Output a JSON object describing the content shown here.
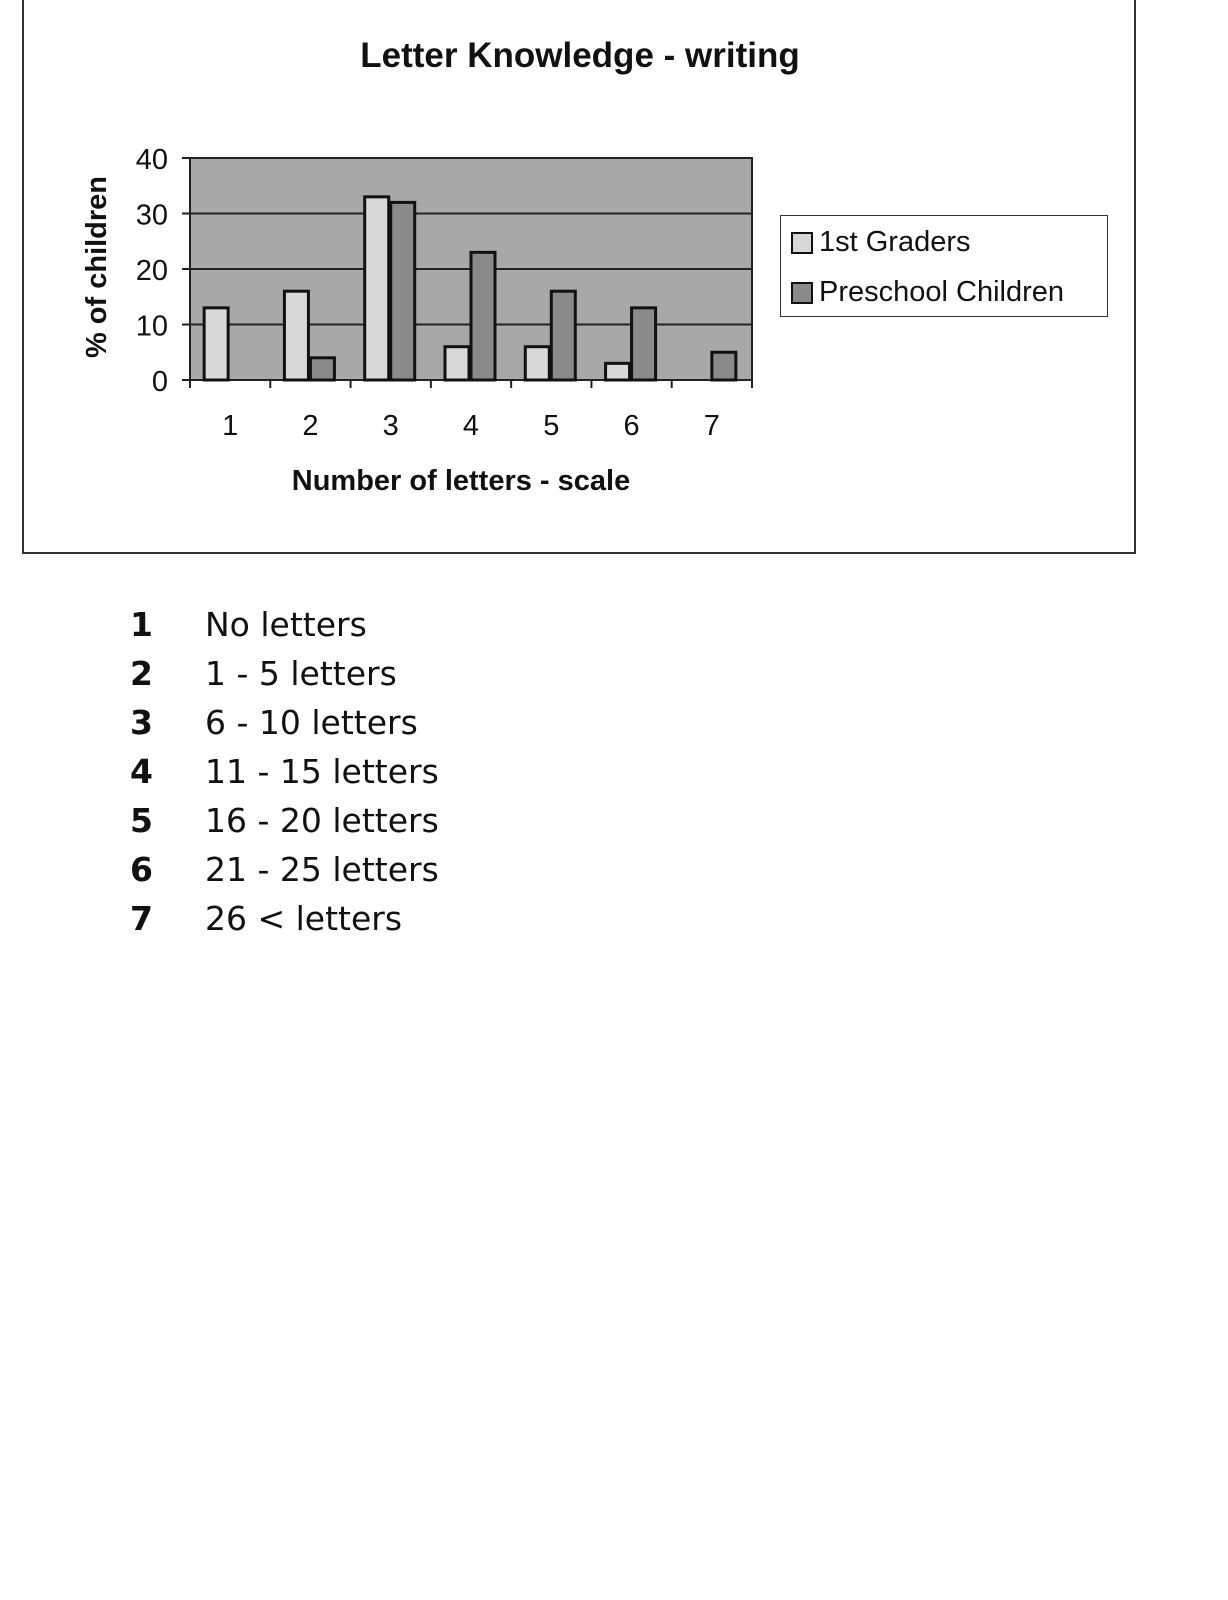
{
  "chart_data": {
    "type": "bar",
    "title": "Letter Knowledge - writing",
    "xlabel": "Number of letters - scale",
    "ylabel": "% of children",
    "categories": [
      "1",
      "2",
      "3",
      "4",
      "5",
      "6",
      "7"
    ],
    "ylim": [
      0,
      40
    ],
    "yticks": [
      "0",
      "10",
      "20",
      "30",
      "40"
    ],
    "grid": true,
    "legend_position": "right",
    "series": [
      {
        "name": "1st Graders",
        "values": [
          13,
          16,
          33,
          6,
          6,
          3,
          0
        ],
        "color": "#d8d8d8"
      },
      {
        "name": "Preschool Children",
        "values": [
          0,
          4,
          32,
          23,
          16,
          13,
          5
        ],
        "color": "#8a8a8a"
      }
    ],
    "plot_background": "#a8a8a8"
  },
  "key": [
    {
      "n": "1",
      "label": "No letters"
    },
    {
      "n": "2",
      "label": "1 - 5 letters"
    },
    {
      "n": "3",
      "label": "6 - 10 letters"
    },
    {
      "n": "4",
      "label": "11 - 15 letters"
    },
    {
      "n": "5",
      "label": "16 - 20 letters"
    },
    {
      "n": "6",
      "label": "21 - 25 letters"
    },
    {
      "n": "7",
      "label": "26 <  letters"
    }
  ]
}
